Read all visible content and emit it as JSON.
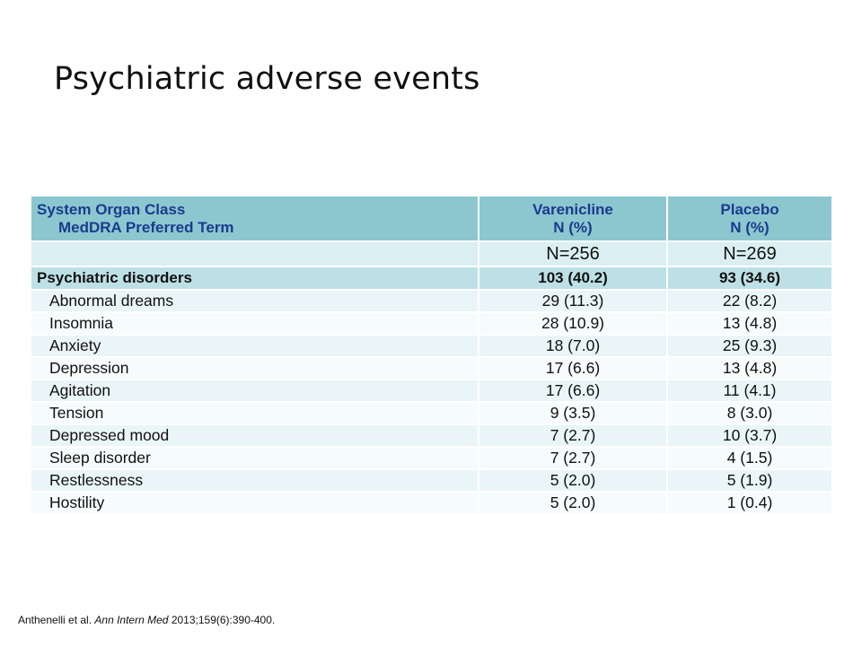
{
  "title": "Psychiatric adverse events",
  "table": {
    "header": {
      "term_line1": "System Organ Class",
      "term_line2": "MedDRA Preferred Term",
      "col1_line1": "Varenicline",
      "col1_line2": "N (%)",
      "col2_line1": "Placebo",
      "col2_line2": "N (%)"
    },
    "n_row": {
      "term": "",
      "col1": "N=256",
      "col2": "N=269"
    },
    "category": {
      "term": "Psychiatric disorders",
      "col1": "103 (40.2)",
      "col2": "93 (34.6)"
    },
    "rows": [
      {
        "term": "Abnormal dreams",
        "col1": "29 (11.3)",
        "col2": "22 (8.2)"
      },
      {
        "term": "Insomnia",
        "col1": "28 (10.9)",
        "col2": "13 (4.8)"
      },
      {
        "term": "Anxiety",
        "col1": "18 (7.0)",
        "col2": "25 (9.3)"
      },
      {
        "term": "Depression",
        "col1": "17 (6.6)",
        "col2": "13 (4.8)"
      },
      {
        "term": "Agitation",
        "col1": "17 (6.6)",
        "col2": "11 (4.1)"
      },
      {
        "term": "Tension",
        "col1": "9 (3.5)",
        "col2": "8 (3.0)"
      },
      {
        "term": "Depressed mood",
        "col1": "7 (2.7)",
        "col2": "10 (3.7)"
      },
      {
        "term": "Sleep disorder",
        "col1": "7 (2.7)",
        "col2": "4 (1.5)"
      },
      {
        "term": "Restlessness",
        "col1": "5 (2.0)",
        "col2": "5 (1.9)"
      },
      {
        "term": "Hostility",
        "col1": "5 (2.0)",
        "col2": "1 (0.4)"
      }
    ]
  },
  "citation": {
    "authors": "Anthenelli et al.",
    "journal": "Ann Intern Med",
    "details": "2013;159(6):390-400."
  },
  "colors": {
    "header_bg": "#8cc7d0",
    "header_text": "#1b3b8c",
    "category_bg": "#bde0e6",
    "row_light": "#f6fbfc",
    "row_tint": "#eaf5f7"
  }
}
